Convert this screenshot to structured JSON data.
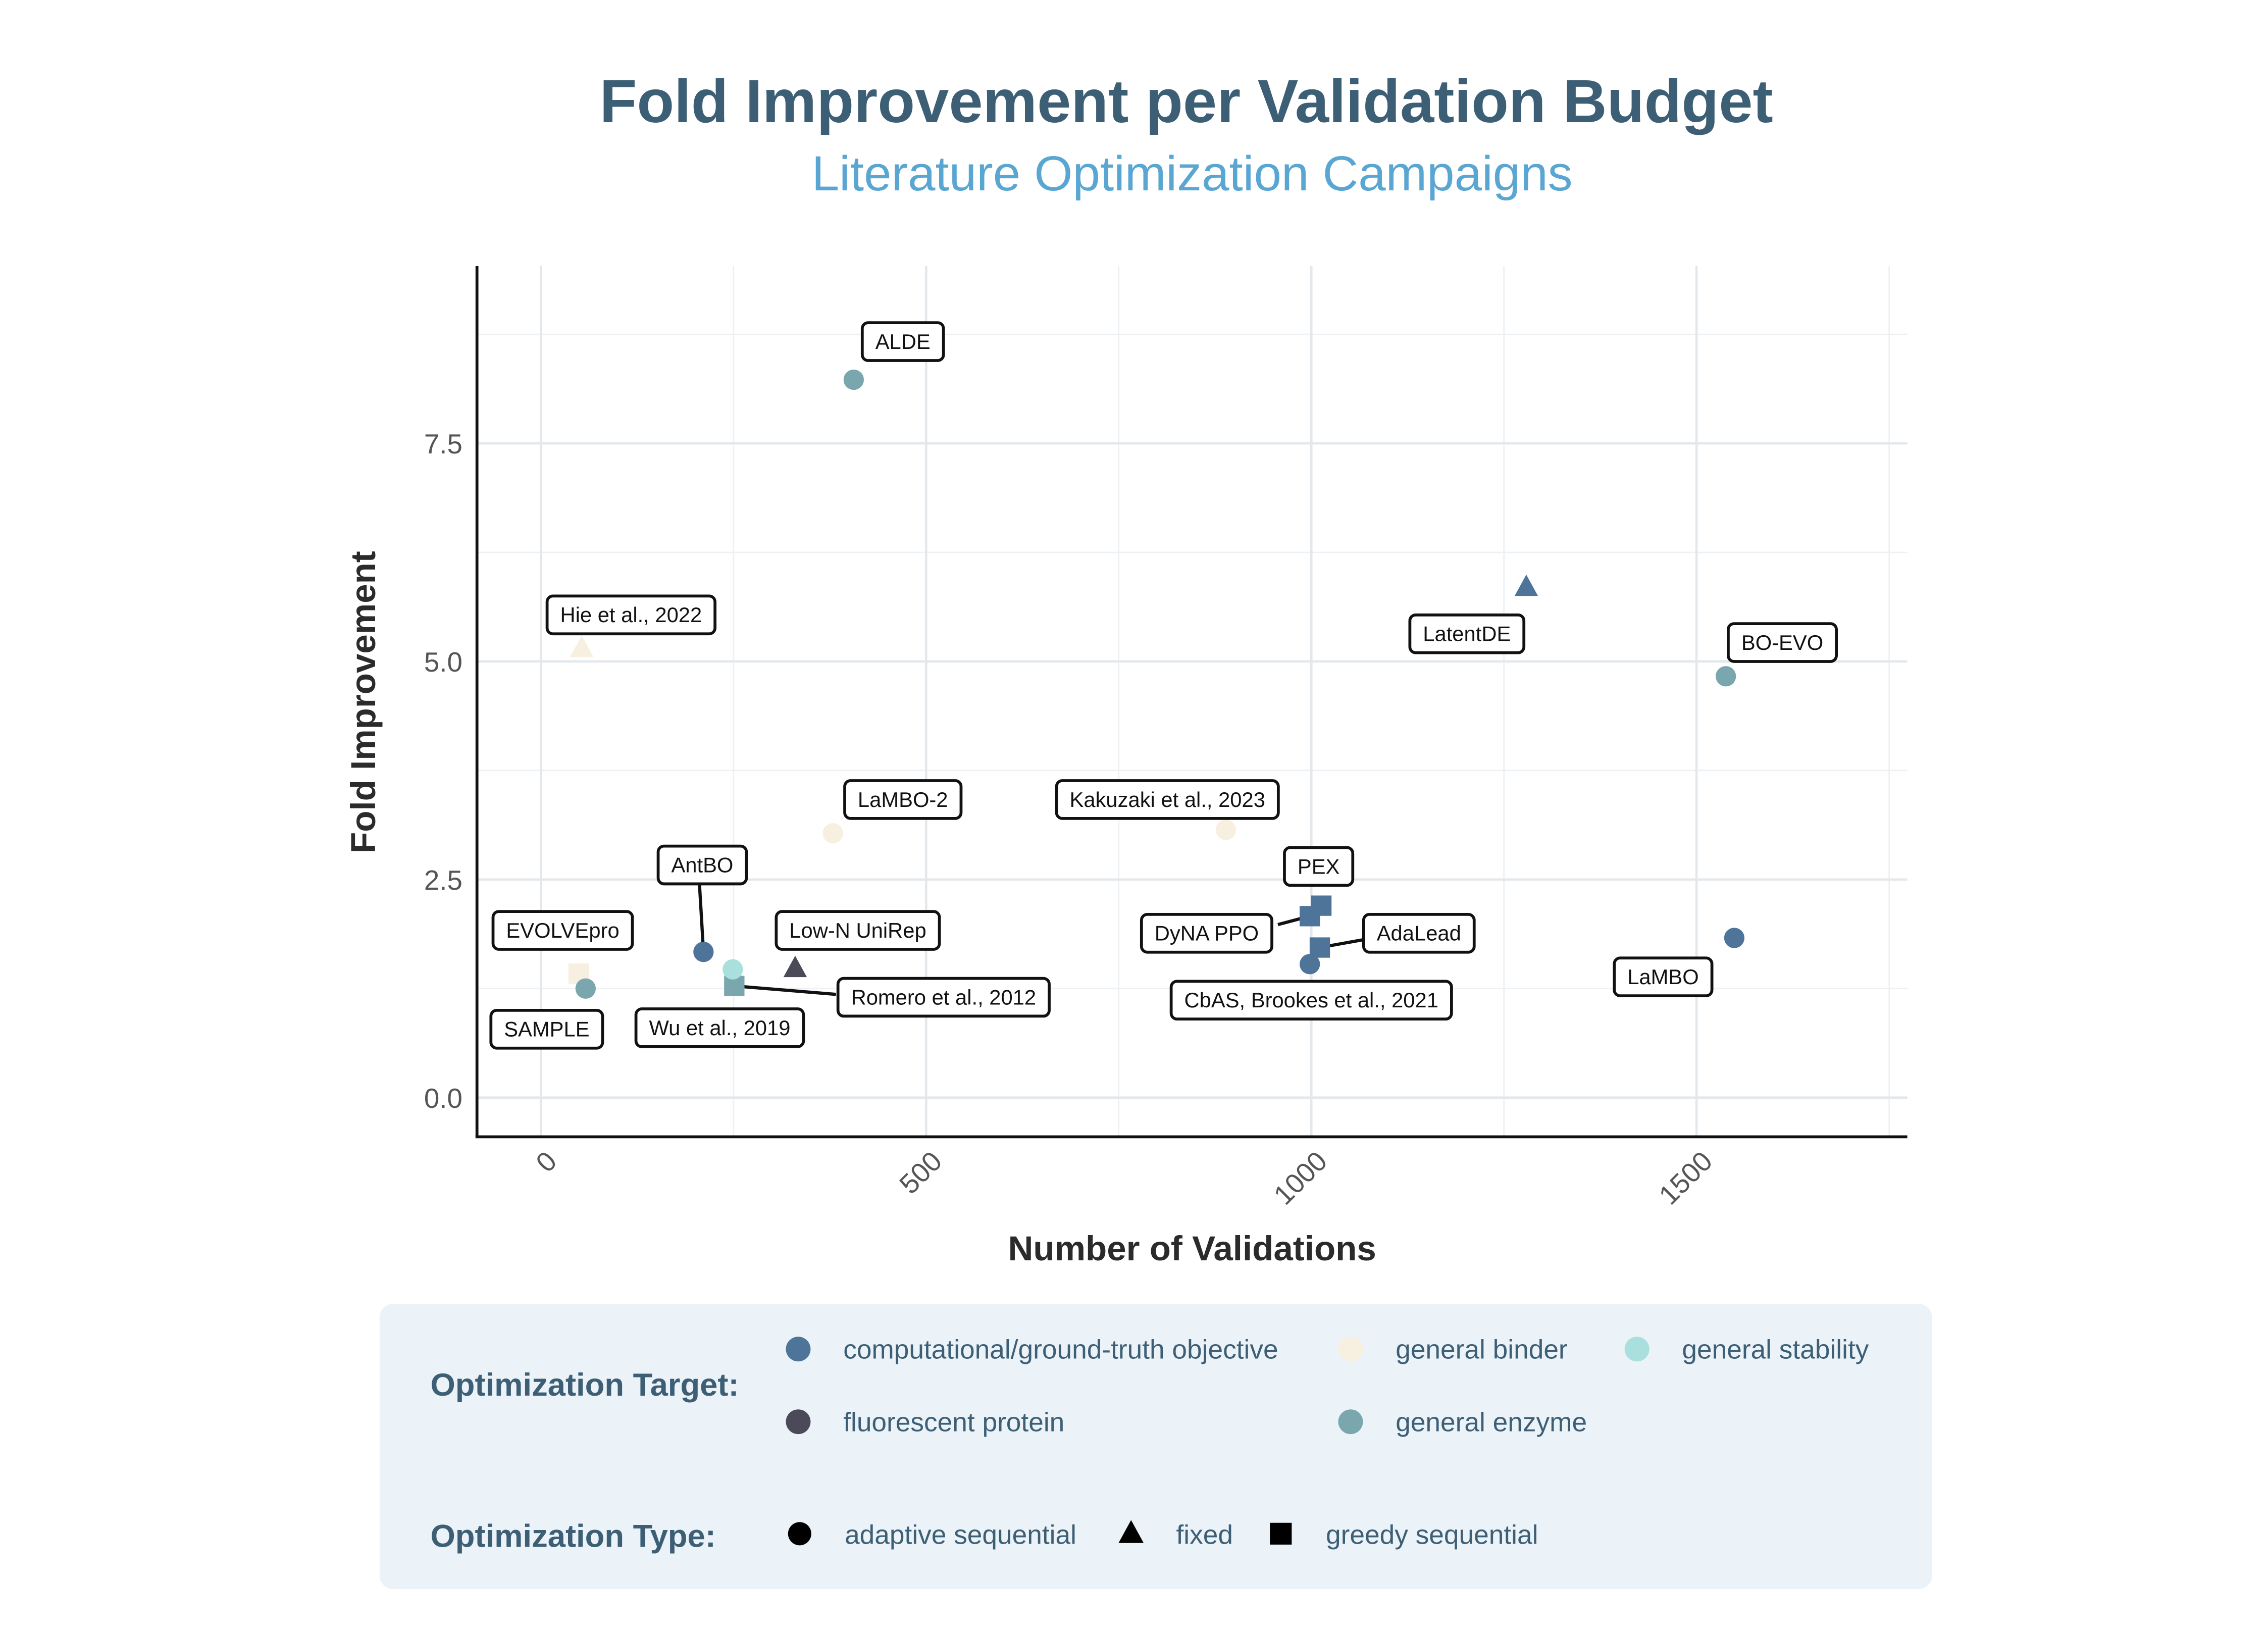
{
  "chart_data": {
    "type": "scatter",
    "title": "Fold Improvement per Validation Budget",
    "subtitle": "Literature Optimization Campaigns",
    "xlabel": "Number of Validations",
    "ylabel": "Fold Improvement",
    "xlim": [
      -85,
      1770
    ],
    "ylim": [
      -0.45,
      9.55
    ],
    "xticks": [
      "0",
      "500",
      "1000",
      "1500"
    ],
    "xtick_values": [
      0,
      500,
      1000,
      1500
    ],
    "yticks": [
      "0.0",
      "2.5",
      "5.0",
      "7.5"
    ],
    "ytick_values": [
      0,
      2.5,
      5,
      7.5
    ],
    "grid": true,
    "points": [
      {
        "label": "ALDE",
        "x": 406,
        "y": 8.23,
        "target": "general enzyme",
        "type": "adaptive sequential"
      },
      {
        "label": "Hie et al., 2022",
        "x": 53,
        "y": 5.15,
        "target": "general binder",
        "type": "fixed"
      },
      {
        "label": "LatentDE",
        "x": 1279,
        "y": 5.85,
        "target": "computational/ground-truth objective",
        "type": "fixed"
      },
      {
        "label": "BO-EVO",
        "x": 1538,
        "y": 4.83,
        "target": "general enzyme",
        "type": "adaptive sequential"
      },
      {
        "label": "LaMBO-2",
        "x": 379,
        "y": 3.03,
        "target": "general binder",
        "type": "adaptive sequential"
      },
      {
        "label": "Kakuzaki et al., 2023",
        "x": 889,
        "y": 3.07,
        "target": "general binder",
        "type": "adaptive sequential"
      },
      {
        "label": "PEX",
        "x": 1013,
        "y": 2.2,
        "target": "computational/ground-truth objective",
        "type": "greedy sequential"
      },
      {
        "label": "DyNA PPO",
        "x": 998,
        "y": 2.08,
        "target": "computational/ground-truth objective",
        "type": "greedy sequential"
      },
      {
        "label": "AdaLead",
        "x": 1011,
        "y": 1.72,
        "target": "computational/ground-truth objective",
        "type": "greedy sequential"
      },
      {
        "label": "CbAS, Brookes et al., 2021",
        "x": 998,
        "y": 1.53,
        "target": "computational/ground-truth objective",
        "type": "adaptive sequential"
      },
      {
        "label": "LaMBO",
        "x": 1549,
        "y": 1.83,
        "target": "computational/ground-truth objective",
        "type": "adaptive sequential"
      },
      {
        "label": "AntBO",
        "x": 211,
        "y": 1.67,
        "target": "computational/ground-truth objective",
        "type": "adaptive sequential"
      },
      {
        "label": "Low-N UniRep",
        "x": 330,
        "y": 1.48,
        "target": "fluorescent protein",
        "type": "fixed"
      },
      {
        "label": "Romero et al., 2012",
        "x": 251,
        "y": 1.28,
        "target": "general enzyme",
        "type": "greedy sequential"
      },
      {
        "label": "Wu et al., 2019",
        "x": 249,
        "y": 1.47,
        "target": "general stability",
        "type": "adaptive sequential"
      },
      {
        "label": "EVOLVEpro",
        "x": 49,
        "y": 1.42,
        "target": "general binder",
        "type": "greedy sequential"
      },
      {
        "label": "SAMPLE",
        "x": 58,
        "y": 1.25,
        "target": "general enzyme",
        "type": "adaptive sequential"
      }
    ],
    "legend": {
      "placement": "bottom",
      "target_title": "Optimization Target:",
      "targets": [
        {
          "name": "computational/ground-truth objective",
          "color": "#4e7599"
        },
        {
          "name": "general binder",
          "color": "#f7efe0"
        },
        {
          "name": "general stability",
          "color": "#a9dfdc"
        },
        {
          "name": "fluorescent protein",
          "color": "#4a4a58"
        },
        {
          "name": "general enzyme",
          "color": "#7aa6ad"
        }
      ],
      "type_title": "Optimization Type:",
      "types": [
        {
          "name": "adaptive sequential",
          "shape": "circle"
        },
        {
          "name": "fixed",
          "shape": "triangle"
        },
        {
          "name": "greedy sequential",
          "shape": "square"
        }
      ]
    }
  }
}
